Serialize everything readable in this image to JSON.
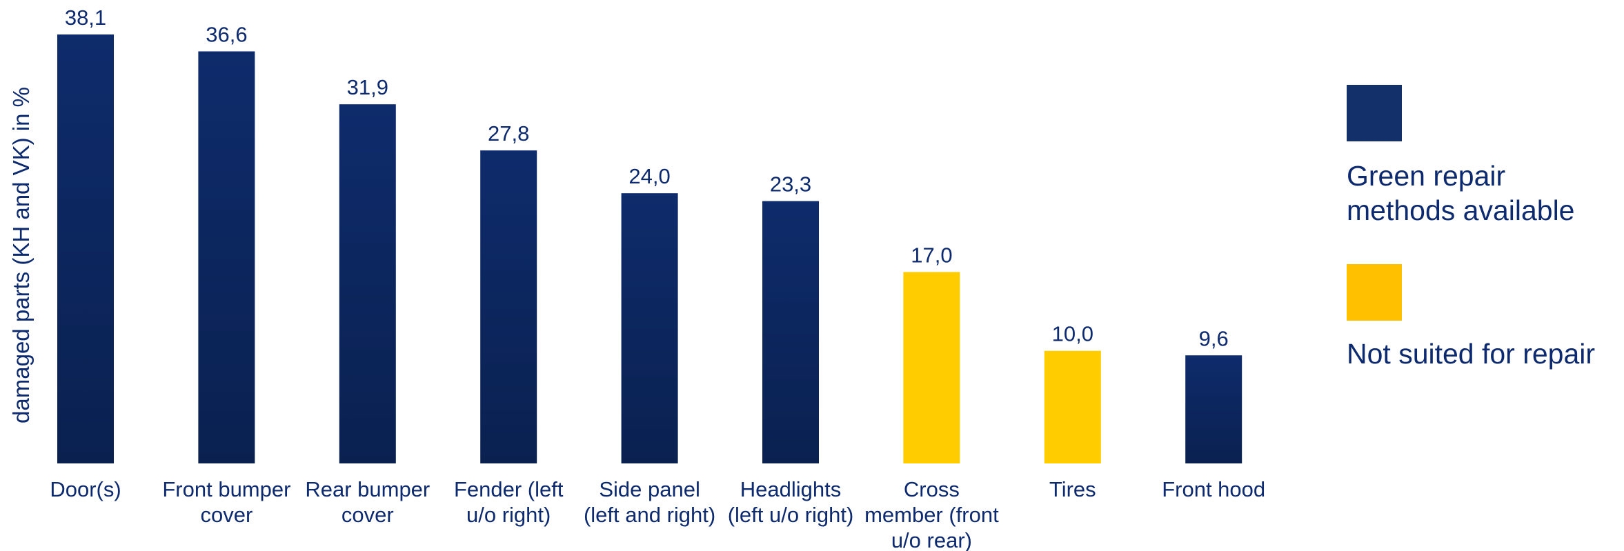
{
  "colors": {
    "repairable": "#0d2a6e",
    "not_repairable": "#ffcc00",
    "text": "#0d2a6e"
  },
  "legend": {
    "items": [
      {
        "label": "Green repair methods available",
        "color": "#13306b"
      },
      {
        "label": "Not suited for repair",
        "color": "#ffc000"
      }
    ]
  },
  "chart_data": {
    "type": "bar",
    "title": "",
    "xlabel": "",
    "ylabel": "damaged parts (KH and VK) in %",
    "ylim": [
      0,
      38.1
    ],
    "grid": false,
    "legend_position": "right",
    "categories": [
      "Door(s)",
      "Front bumper cover",
      "Rear bumper cover",
      "Fender (left u/o right)",
      "Side panel (left and right)",
      "Headlights (left u/o right)",
      "Cross member (front u/o rear)",
      "Tires",
      "Front hood"
    ],
    "values": [
      38.1,
      36.6,
      31.9,
      27.8,
      24.0,
      23.3,
      17.0,
      10.0,
      9.6
    ],
    "value_labels": [
      "38,1",
      "36,6",
      "31,9",
      "27,8",
      "24,0",
      "23,3",
      "17,0",
      "10,0",
      "9,6"
    ],
    "category_group": [
      "repairable",
      "repairable",
      "repairable",
      "repairable",
      "repairable",
      "repairable",
      "not_repairable",
      "not_repairable",
      "repairable"
    ]
  }
}
